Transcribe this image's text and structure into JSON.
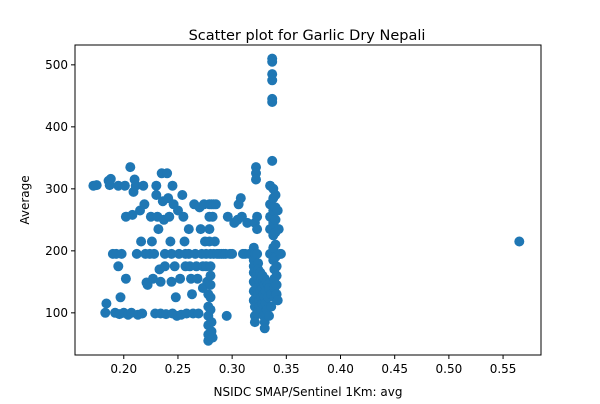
{
  "chart_data": {
    "type": "scatter",
    "title": "Scatter plot for Garlic Dry Nepali",
    "xlabel": "NSIDC SMAP/Sentinel 1Km: avg",
    "ylabel": "Average",
    "xlim": [
      0.155,
      0.585
    ],
    "ylim": [
      32,
      532
    ],
    "xticks": [
      0.2,
      0.25,
      0.3,
      0.35,
      0.4,
      0.45,
      0.5,
      0.55
    ],
    "xtick_labels": [
      "0.20",
      "0.25",
      "0.30",
      "0.35",
      "0.40",
      "0.45",
      "0.50",
      "0.55"
    ],
    "yticks": [
      100,
      200,
      300,
      400,
      500
    ],
    "ytick_labels": [
      "100",
      "200",
      "300",
      "400",
      "500"
    ],
    "grid": false,
    "marker_color": "#1f77b4",
    "points": [
      [
        0.172,
        305
      ],
      [
        0.175,
        306
      ],
      [
        0.183,
        100
      ],
      [
        0.184,
        115
      ],
      [
        0.186,
        313
      ],
      [
        0.188,
        316
      ],
      [
        0.187,
        306
      ],
      [
        0.19,
        195
      ],
      [
        0.192,
        100
      ],
      [
        0.193,
        195
      ],
      [
        0.195,
        305
      ],
      [
        0.195,
        175
      ],
      [
        0.196,
        98
      ],
      [
        0.197,
        125
      ],
      [
        0.198,
        195
      ],
      [
        0.2,
        100
      ],
      [
        0.201,
        305
      ],
      [
        0.202,
        255
      ],
      [
        0.202,
        155
      ],
      [
        0.204,
        97
      ],
      [
        0.206,
        335
      ],
      [
        0.207,
        100
      ],
      [
        0.209,
        295
      ],
      [
        0.208,
        258
      ],
      [
        0.21,
        315
      ],
      [
        0.211,
        305
      ],
      [
        0.212,
        195
      ],
      [
        0.213,
        97
      ],
      [
        0.215,
        265
      ],
      [
        0.216,
        215
      ],
      [
        0.217,
        99
      ],
      [
        0.218,
        305
      ],
      [
        0.219,
        275
      ],
      [
        0.22,
        195
      ],
      [
        0.221,
        149
      ],
      [
        0.222,
        145
      ],
      [
        0.224,
        195
      ],
      [
        0.225,
        255
      ],
      [
        0.226,
        215
      ],
      [
        0.227,
        155
      ],
      [
        0.228,
        195
      ],
      [
        0.229,
        99
      ],
      [
        0.23,
        305
      ],
      [
        0.23,
        290
      ],
      [
        0.231,
        255
      ],
      [
        0.232,
        235
      ],
      [
        0.233,
        170
      ],
      [
        0.234,
        150
      ],
      [
        0.234,
        99
      ],
      [
        0.235,
        325
      ],
      [
        0.236,
        280
      ],
      [
        0.237,
        250
      ],
      [
        0.238,
        195
      ],
      [
        0.238,
        175
      ],
      [
        0.239,
        98
      ],
      [
        0.24,
        325
      ],
      [
        0.241,
        285
      ],
      [
        0.242,
        255
      ],
      [
        0.243,
        215
      ],
      [
        0.244,
        195
      ],
      [
        0.244,
        150
      ],
      [
        0.245,
        305
      ],
      [
        0.245,
        99
      ],
      [
        0.246,
        275
      ],
      [
        0.247,
        175
      ],
      [
        0.248,
        125
      ],
      [
        0.249,
        95
      ],
      [
        0.25,
        265
      ],
      [
        0.251,
        195
      ],
      [
        0.252,
        155
      ],
      [
        0.253,
        97
      ],
      [
        0.254,
        290
      ],
      [
        0.255,
        255
      ],
      [
        0.256,
        215
      ],
      [
        0.257,
        195
      ],
      [
        0.257,
        175
      ],
      [
        0.258,
        99
      ],
      [
        0.26,
        235
      ],
      [
        0.26,
        195
      ],
      [
        0.261,
        175
      ],
      [
        0.262,
        155
      ],
      [
        0.263,
        130
      ],
      [
        0.264,
        99
      ],
      [
        0.265,
        275
      ],
      [
        0.266,
        195
      ],
      [
        0.267,
        175
      ],
      [
        0.268,
        155
      ],
      [
        0.269,
        99
      ],
      [
        0.27,
        270
      ],
      [
        0.271,
        235
      ],
      [
        0.272,
        195
      ],
      [
        0.273,
        175
      ],
      [
        0.273,
        140
      ],
      [
        0.274,
        275
      ],
      [
        0.275,
        215
      ],
      [
        0.276,
        195
      ],
      [
        0.276,
        175
      ],
      [
        0.277,
        150
      ],
      [
        0.278,
        130
      ],
      [
        0.278,
        110
      ],
      [
        0.278,
        95
      ],
      [
        0.278,
        80
      ],
      [
        0.278,
        65
      ],
      [
        0.278,
        55
      ],
      [
        0.279,
        275
      ],
      [
        0.279,
        255
      ],
      [
        0.279,
        235
      ],
      [
        0.279,
        215
      ],
      [
        0.28,
        195
      ],
      [
        0.28,
        175
      ],
      [
        0.28,
        160
      ],
      [
        0.28,
        145
      ],
      [
        0.28,
        125
      ],
      [
        0.28,
        105
      ],
      [
        0.281,
        275
      ],
      [
        0.281,
        85
      ],
      [
        0.281,
        70
      ],
      [
        0.282,
        255
      ],
      [
        0.282,
        60
      ],
      [
        0.283,
        275
      ],
      [
        0.283,
        195
      ],
      [
        0.284,
        215
      ],
      [
        0.285,
        275
      ],
      [
        0.286,
        195
      ],
      [
        0.288,
        195
      ],
      [
        0.29,
        195
      ],
      [
        0.292,
        195
      ],
      [
        0.294,
        195
      ],
      [
        0.295,
        95
      ],
      [
        0.296,
        255
      ],
      [
        0.298,
        195
      ],
      [
        0.3,
        195
      ],
      [
        0.302,
        245
      ],
      [
        0.305,
        250
      ],
      [
        0.306,
        275
      ],
      [
        0.308,
        285
      ],
      [
        0.309,
        255
      ],
      [
        0.31,
        195
      ],
      [
        0.312,
        195
      ],
      [
        0.314,
        245
      ],
      [
        0.316,
        195
      ],
      [
        0.318,
        195
      ],
      [
        0.32,
        205
      ],
      [
        0.32,
        185
      ],
      [
        0.32,
        175
      ],
      [
        0.32,
        165
      ],
      [
        0.32,
        150
      ],
      [
        0.32,
        135
      ],
      [
        0.32,
        120
      ],
      [
        0.321,
        245
      ],
      [
        0.321,
        195
      ],
      [
        0.321,
        110
      ],
      [
        0.321,
        95
      ],
      [
        0.321,
        85
      ],
      [
        0.322,
        335
      ],
      [
        0.322,
        325
      ],
      [
        0.322,
        315
      ],
      [
        0.322,
        160
      ],
      [
        0.322,
        140
      ],
      [
        0.322,
        125
      ],
      [
        0.323,
        255
      ],
      [
        0.323,
        235
      ],
      [
        0.323,
        195
      ],
      [
        0.323,
        100
      ],
      [
        0.324,
        180
      ],
      [
        0.324,
        170
      ],
      [
        0.324,
        155
      ],
      [
        0.324,
        130
      ],
      [
        0.325,
        145
      ],
      [
        0.325,
        120
      ],
      [
        0.325,
        110
      ],
      [
        0.326,
        165
      ],
      [
        0.326,
        150
      ],
      [
        0.326,
        135
      ],
      [
        0.327,
        155
      ],
      [
        0.327,
        125
      ],
      [
        0.327,
        105
      ],
      [
        0.328,
        160
      ],
      [
        0.328,
        140
      ],
      [
        0.328,
        115
      ],
      [
        0.329,
        150
      ],
      [
        0.329,
        130
      ],
      [
        0.329,
        95
      ],
      [
        0.33,
        155
      ],
      [
        0.33,
        145
      ],
      [
        0.33,
        125
      ],
      [
        0.33,
        85
      ],
      [
        0.33,
        75
      ],
      [
        0.331,
        135
      ],
      [
        0.331,
        115
      ],
      [
        0.332,
        150
      ],
      [
        0.332,
        105
      ],
      [
        0.333,
        145
      ],
      [
        0.333,
        125
      ],
      [
        0.334,
        140
      ],
      [
        0.334,
        95
      ],
      [
        0.335,
        305
      ],
      [
        0.335,
        275
      ],
      [
        0.335,
        255
      ],
      [
        0.335,
        235
      ],
      [
        0.335,
        195
      ],
      [
        0.336,
        130
      ],
      [
        0.336,
        110
      ],
      [
        0.337,
        510
      ],
      [
        0.337,
        505
      ],
      [
        0.337,
        485
      ],
      [
        0.337,
        475
      ],
      [
        0.337,
        445
      ],
      [
        0.337,
        440
      ],
      [
        0.337,
        345
      ],
      [
        0.338,
        300
      ],
      [
        0.338,
        285
      ],
      [
        0.338,
        265
      ],
      [
        0.338,
        245
      ],
      [
        0.338,
        225
      ],
      [
        0.338,
        205
      ],
      [
        0.338,
        185
      ],
      [
        0.339,
        170
      ],
      [
        0.339,
        155
      ],
      [
        0.339,
        140
      ],
      [
        0.339,
        125
      ],
      [
        0.34,
        290
      ],
      [
        0.34,
        270
      ],
      [
        0.34,
        250
      ],
      [
        0.34,
        230
      ],
      [
        0.34,
        210
      ],
      [
        0.34,
        190
      ],
      [
        0.341,
        175
      ],
      [
        0.341,
        160
      ],
      [
        0.341,
        145
      ],
      [
        0.341,
        130
      ],
      [
        0.342,
        120
      ],
      [
        0.342,
        265
      ],
      [
        0.343,
        235
      ],
      [
        0.344,
        195
      ],
      [
        0.345,
        195
      ],
      [
        0.565,
        215
      ]
    ]
  }
}
